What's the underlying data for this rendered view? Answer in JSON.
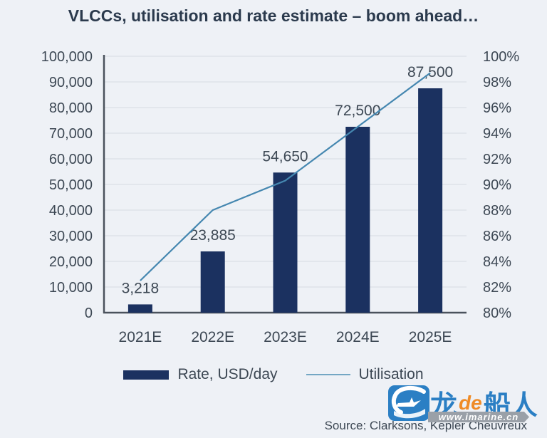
{
  "title": "VLCCs, utilisation and rate estimate – boom ahead…",
  "chart_data": {
    "type": "combo",
    "categories": [
      "2021E",
      "2022E",
      "2023E",
      "2024E",
      "2025E"
    ],
    "series": [
      {
        "name": "Rate, USD/day",
        "type": "bar",
        "axis": "left",
        "values": [
          3218,
          23885,
          54650,
          72500,
          87500
        ],
        "value_labels": [
          "3,218",
          "23,885",
          "54,650",
          "72,500",
          "87,500"
        ]
      },
      {
        "name": "Utilisation",
        "type": "line",
        "axis": "right",
        "values": [
          82.5,
          88,
          90.3,
          94.5,
          98.7
        ]
      }
    ],
    "left_axis": {
      "min": 0,
      "max": 100000,
      "step": 10000,
      "tick_labels": [
        "0",
        "10,000",
        "20,000",
        "30,000",
        "40,000",
        "50,000",
        "60,000",
        "70,000",
        "80,000",
        "90,000",
        "100,000"
      ]
    },
    "right_axis": {
      "min": 80,
      "max": 100,
      "step": 2,
      "tick_labels": [
        "80%",
        "82%",
        "84%",
        "86%",
        "88%",
        "90%",
        "92%",
        "94%",
        "96%",
        "98%",
        "100%"
      ]
    },
    "grid": true,
    "legend_position": "bottom"
  },
  "legend": {
    "bar_label": "Rate, USD/day",
    "line_label": "Utilisation"
  },
  "source": {
    "label": "Source: Clarksons, Kepler Cheuvreux"
  },
  "watermark": {
    "logo_text_parts": [
      "龙",
      "de",
      "船人"
    ],
    "url": "www.imarine.cn",
    "ship_icon": "ship-in-rounded-square"
  },
  "colors": {
    "background": "#eef1f6",
    "bar": "#1b3160",
    "line": "#4587b0",
    "legend_line": "#74a7c4",
    "axis_text": "#3d4854",
    "title_text": "#2b3a4d",
    "gridline": "#dde2e9",
    "axis_line": "#4a525c",
    "logo_blue": "#2b7fc4",
    "logo_orange": "#ef8b27",
    "ribbon_gray": "#9aa0a8"
  }
}
